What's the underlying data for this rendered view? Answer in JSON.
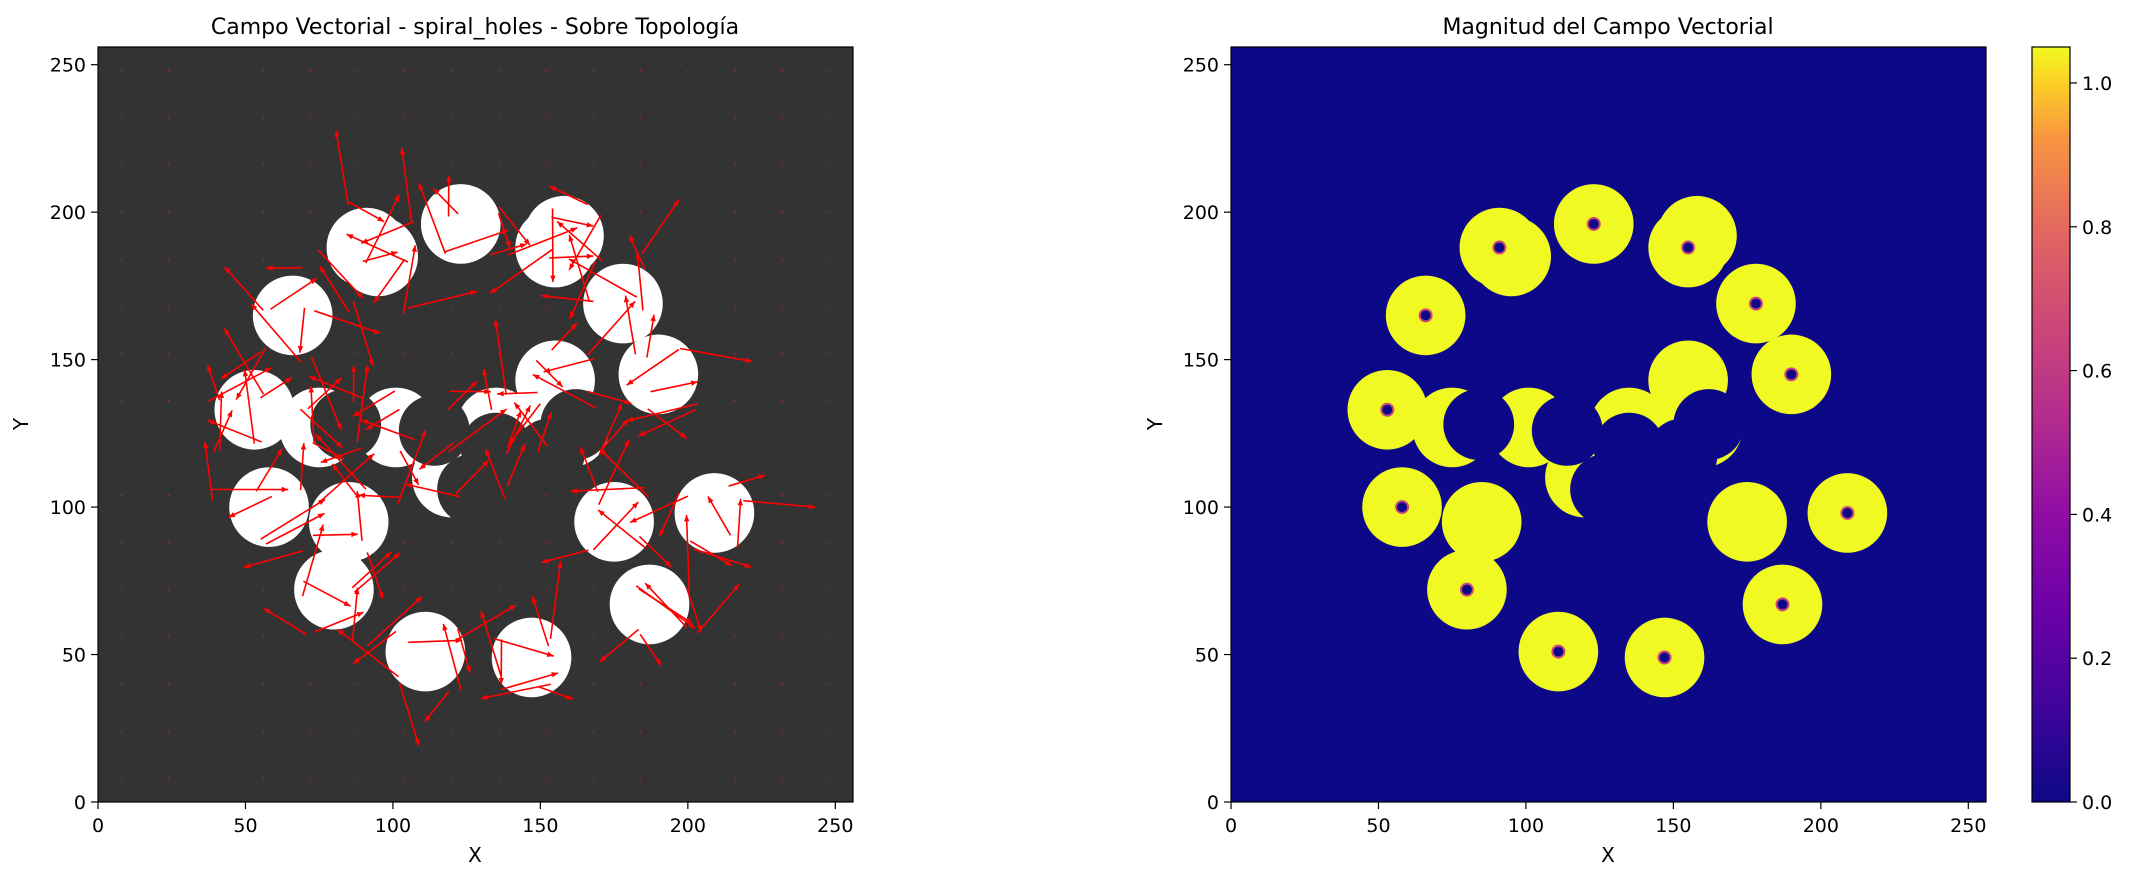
{
  "figure": {
    "left_title": "Campo Vectorial - spiral_holes - Sobre Topología",
    "right_title": "Magnitud del Campo Vectorial"
  },
  "colors": {
    "background_dark": "#333333",
    "mask_white": "#ffffff",
    "arrow": "#ff0000",
    "plasma_low": "#0d0887",
    "plasma_mid": "#cc4778",
    "plasma_high": "#f0f921"
  },
  "chart_data": [
    {
      "type": "heatmap",
      "title": "Campo Vectorial - spiral_holes - Sobre Topología",
      "xlabel": "X",
      "ylabel": "Y",
      "xlim": [
        0,
        256
      ],
      "ylim": [
        0,
        256
      ],
      "xticks": [
        0,
        50,
        100,
        150,
        200,
        250
      ],
      "yticks": [
        0,
        50,
        100,
        150,
        200,
        250
      ],
      "grid": false,
      "overlay": "quiver",
      "topology": {
        "holes": [
          [
            123,
            196
          ],
          [
            155,
            188
          ],
          [
            178,
            169
          ],
          [
            190,
            145
          ],
          [
            209,
            98
          ],
          [
            187,
            67
          ],
          [
            147,
            49
          ],
          [
            111,
            51
          ],
          [
            80,
            72
          ],
          [
            58,
            100
          ],
          [
            53,
            133
          ],
          [
            66,
            165
          ],
          [
            91,
            188
          ],
          [
            75,
            127
          ],
          [
            101,
            127
          ],
          [
            135,
            127
          ],
          [
            160,
            127
          ],
          [
            95,
            185
          ],
          [
            158,
            192
          ],
          [
            155,
            143
          ],
          [
            120,
            110
          ],
          [
            175,
            95
          ],
          [
            85,
            95
          ]
        ],
        "inner_voids": [
          [
            84,
            128
          ],
          [
            114,
            126
          ],
          [
            162,
            128
          ],
          [
            135,
            120
          ],
          [
            127,
            106
          ],
          [
            153,
            118
          ]
        ]
      }
    },
    {
      "type": "heatmap",
      "title": "Magnitud del Campo Vectorial",
      "xlabel": "X",
      "ylabel": "Y",
      "xlim": [
        0,
        256
      ],
      "ylim": [
        0,
        256
      ],
      "xticks": [
        0,
        50,
        100,
        150,
        200,
        250
      ],
      "yticks": [
        0,
        50,
        100,
        150,
        200,
        250
      ],
      "grid": false,
      "colormap": "plasma",
      "colorbar": {
        "range": [
          0.0,
          1.05
        ],
        "ticks": [
          "0.0",
          "0.2",
          "0.4",
          "0.6",
          "0.8",
          "1.0"
        ]
      }
    }
  ]
}
